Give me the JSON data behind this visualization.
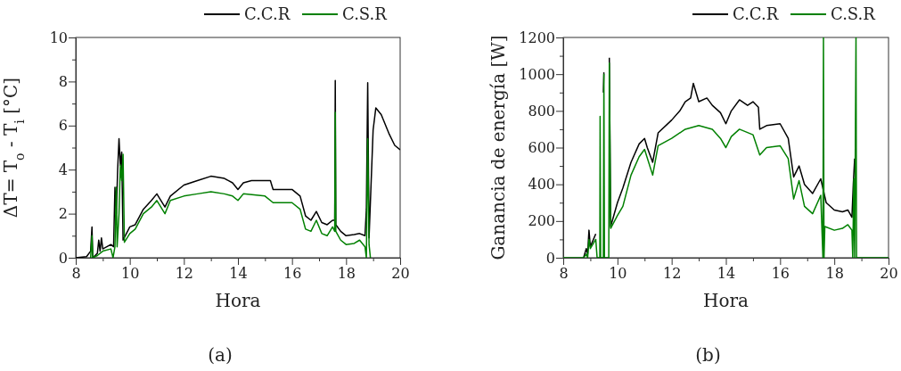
{
  "chart_data": [
    {
      "type": "line",
      "xlabel": "Hora",
      "ylabel": "ΔT= T$_{o}$ - T$_{i}$ [°C]",
      "annotations": [
        "(a)"
      ],
      "xlim": [
        8,
        20
      ],
      "ylim": [
        0,
        10
      ],
      "xticks": [
        8,
        {
          "value": 9,
          "label": null
        },
        10,
        {
          "value": 11,
          "label": null
        },
        12,
        {
          "value": 13,
          "label": null
        },
        14,
        {
          "value": 15,
          "label": null
        },
        16,
        {
          "value": 17,
          "label": null
        },
        18,
        {
          "value": 19,
          "label": null
        },
        20
      ],
      "yticks": [
        0,
        {
          "value": 1,
          "label": null
        },
        2,
        {
          "value": 3,
          "label": null
        },
        4,
        {
          "value": 5,
          "label": null
        },
        6,
        {
          "value": 7,
          "label": null
        },
        8,
        {
          "value": 9,
          "label": null
        },
        10
      ],
      "legend": "top right",
      "grid": false,
      "line_style": "solid",
      "marker": "none",
      "series": [
        {
          "name": "C.C.R",
          "color": "#000000",
          "x": [
            8,
            8.4,
            8.55,
            8.6,
            8.63,
            8.8,
            8.85,
            8.9,
            8.95,
            9.0,
            9.3,
            9.4,
            9.45,
            9.5,
            9.55,
            9.6,
            9.65,
            9.7,
            9.75,
            10.0,
            10.2,
            10.5,
            10.8,
            11.0,
            11.1,
            11.3,
            11.5,
            12,
            12.5,
            13,
            13.5,
            13.8,
            14.0,
            14.2,
            14.5,
            15,
            15.2,
            15.3,
            15.5,
            16,
            16.3,
            16.5,
            16.7,
            16.9,
            17.1,
            17.3,
            17.5,
            17.58,
            17.6,
            17.62,
            17.8,
            18,
            18.3,
            18.5,
            18.7,
            18.75,
            18.8,
            18.85,
            19.0,
            19.1,
            19.3,
            19.6,
            19.8,
            20
          ],
          "values": [
            0,
            0.05,
            0.3,
            1.4,
            0,
            0.2,
            0.8,
            0.3,
            0.9,
            0.4,
            0.6,
            0.5,
            3.2,
            2,
            4,
            5.4,
            4.2,
            4.8,
            0.8,
            1.4,
            1.5,
            2.2,
            2.6,
            2.9,
            2.7,
            2.3,
            2.8,
            3.3,
            3.5,
            3.7,
            3.6,
            3.4,
            3.1,
            3.4,
            3.5,
            3.5,
            3.5,
            3.1,
            3.1,
            3.1,
            2.8,
            1.9,
            1.7,
            2.1,
            1.6,
            1.5,
            1.7,
            1.7,
            8.05,
            1.5,
            1.2,
            1.0,
            1.05,
            1.1,
            1.0,
            2.2,
            7.95,
            0.9,
            5.8,
            6.8,
            6.5,
            5.6,
            5.1,
            4.9
          ]
        },
        {
          "name": "C.S.R",
          "color": "#008000",
          "x": [
            8.55,
            8.6,
            8.63,
            8.8,
            9.0,
            9.3,
            9.38,
            9.45,
            9.5,
            9.53,
            9.6,
            9.65,
            9.7,
            9.75,
            9.8,
            10,
            10.2,
            10.5,
            10.8,
            11,
            11.3,
            11.5,
            12,
            12.5,
            13,
            13.5,
            13.8,
            14,
            14.2,
            15,
            15.3,
            15.5,
            16,
            16.3,
            16.5,
            16.7,
            16.9,
            17.1,
            17.3,
            17.5,
            17.58,
            17.6,
            17.62,
            17.8,
            18,
            18.3,
            18.5,
            18.7,
            18.75,
            18.8,
            18.85,
            18.9
          ],
          "values": [
            0,
            1,
            0,
            0.1,
            0.3,
            0.4,
            0,
            0.5,
            3.2,
            0.5,
            2,
            4.2,
            3.5,
            4.7,
            0.7,
            1.1,
            1.3,
            2,
            2.3,
            2.6,
            2,
            2.6,
            2.8,
            2.9,
            3.0,
            2.9,
            2.8,
            2.6,
            2.9,
            2.8,
            2.5,
            2.5,
            2.5,
            2.2,
            1.3,
            1.2,
            1.7,
            1.1,
            1.0,
            1.4,
            1.2,
            6.6,
            1.2,
            0.8,
            0.6,
            0.65,
            0.8,
            0.5,
            0,
            5.4,
            0.6,
            0
          ]
        }
      ]
    },
    {
      "type": "line",
      "xlabel": "Hora",
      "ylabel": "Ganancia de energía [W]",
      "annotations": [
        "(b)"
      ],
      "xlim": [
        8,
        20
      ],
      "ylim": [
        0,
        1200
      ],
      "xticks": [
        8,
        {
          "value": 9,
          "label": null
        },
        10,
        {
          "value": 11,
          "label": null
        },
        12,
        {
          "value": 13,
          "label": null
        },
        14,
        {
          "value": 15,
          "label": null
        },
        16,
        {
          "value": 17,
          "label": null
        },
        18,
        {
          "value": 19,
          "label": null
        },
        20
      ],
      "yticks": [
        0,
        {
          "value": 100,
          "label": null
        },
        200,
        {
          "value": 300,
          "label": null
        },
        400,
        {
          "value": 500,
          "label": null
        },
        600,
        {
          "value": 700,
          "label": null
        },
        800,
        {
          "value": 900,
          "label": null
        },
        1000,
        {
          "value": 1100,
          "label": null
        },
        1200
      ],
      "legend": "top right",
      "grid": false,
      "line_style": "solid",
      "marker": "none",
      "series": [
        {
          "name": "C.C.R",
          "color": "#000000",
          "x": [
            8.75,
            8.85,
            8.9,
            8.95,
            9.0,
            9.2,
            9.25,
            9.48,
            9.5,
            9.52,
            9.7,
            9.75,
            10,
            10.2,
            10.5,
            10.8,
            11,
            11.1,
            11.3,
            11.5,
            12,
            12.3,
            12.5,
            12.7,
            12.8,
            13,
            13.3,
            13.5,
            13.8,
            14,
            14.2,
            14.5,
            14.8,
            15,
            15.2,
            15.25,
            15.5,
            16,
            16.3,
            16.5,
            16.7,
            16.9,
            17.2,
            17.5,
            17.7,
            18,
            18.3,
            18.5,
            18.65,
            18.7,
            18.75
          ],
          "values": [
            0,
            50,
            20,
            150,
            60,
            130,
            null,
            900,
            1010,
            null,
            1090,
            170,
            300,
            380,
            520,
            620,
            650,
            600,
            520,
            680,
            750,
            800,
            850,
            870,
            950,
            850,
            870,
            830,
            790,
            730,
            800,
            860,
            830,
            850,
            820,
            700,
            720,
            730,
            650,
            440,
            500,
            400,
            350,
            430,
            300,
            260,
            250,
            260,
            220,
            400,
            540
          ]
        },
        {
          "name": "C.S.R",
          "color": "#008000",
          "x": [
            8,
            8.75,
            8.85,
            8.9,
            8.95,
            9.0,
            9.2,
            9.25,
            9.35,
            9.36,
            9.38,
            9.48,
            9.5,
            9.52,
            9.68,
            9.7,
            9.75,
            10,
            10.2,
            10.5,
            10.8,
            11,
            11.3,
            11.5,
            12,
            12.5,
            13,
            13.5,
            13.8,
            14,
            14.2,
            14.5,
            15,
            15.25,
            15.5,
            16,
            16.3,
            16.5,
            16.7,
            16.9,
            17.2,
            17.5,
            17.58,
            17.6,
            17.62,
            17.65,
            18,
            18.3,
            18.5,
            18.65,
            18.68,
            18.72,
            18.75,
            18.8,
            18.82,
            20
          ],
          "values": [
            0,
            0,
            20,
            0,
            100,
            50,
            100,
            0,
            0,
            770,
            0,
            0,
            1000,
            0,
            0,
            1060,
            160,
            230,
            280,
            450,
            550,
            590,
            450,
            610,
            650,
            700,
            720,
            700,
            650,
            600,
            660,
            700,
            670,
            560,
            600,
            610,
            540,
            320,
            420,
            280,
            240,
            340,
            0,
            1200,
            0,
            170,
            150,
            160,
            180,
            150,
            0,
            430,
            0,
            1200,
            0,
            0
          ]
        }
      ]
    }
  ]
}
